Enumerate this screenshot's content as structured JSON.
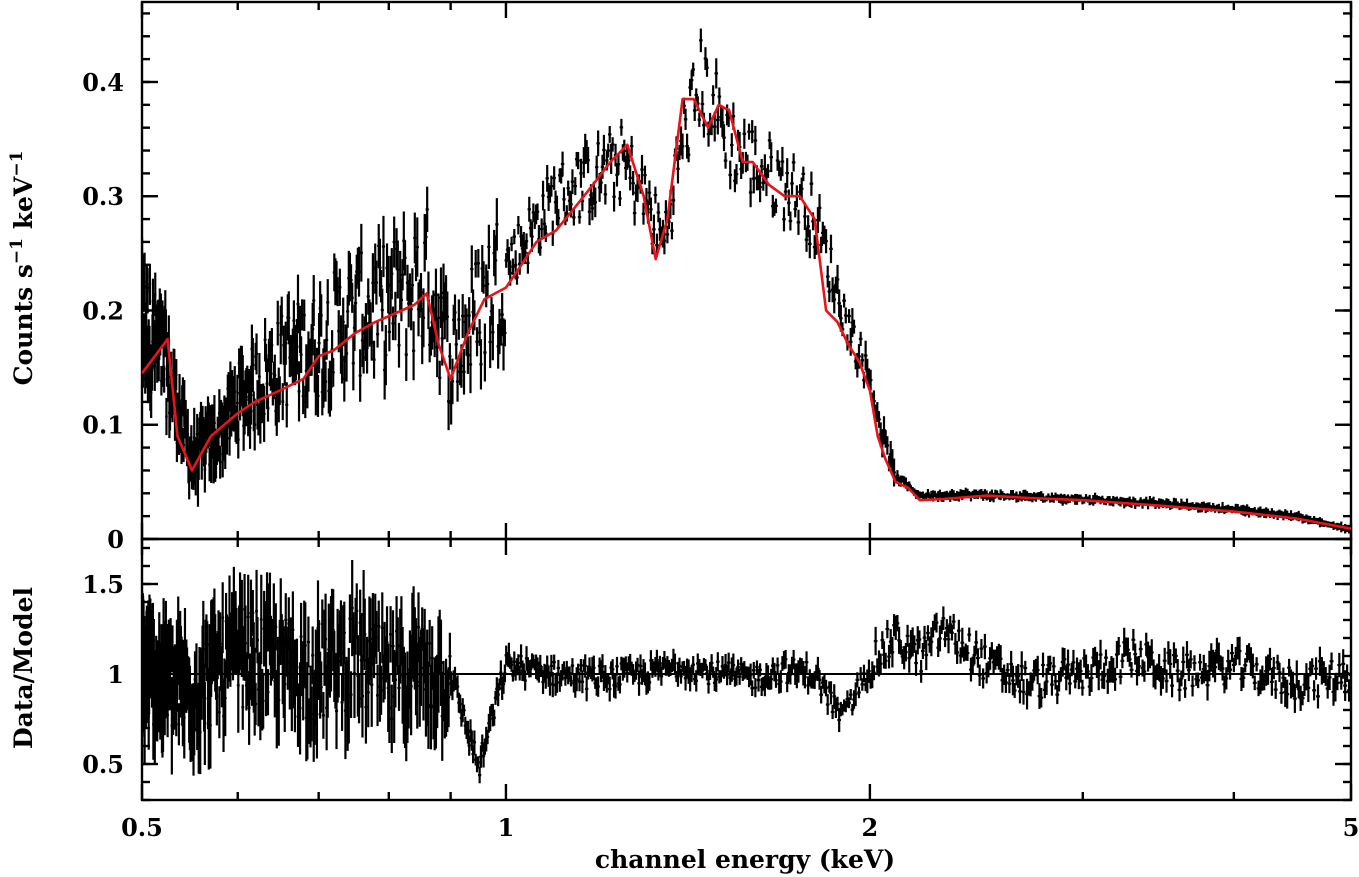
{
  "chart_data": [
    {
      "type": "line",
      "panel": "spectrum",
      "ylabel_parts": [
        "Counts s",
        "−1",
        " keV",
        "−1"
      ],
      "xscale": "log",
      "xlim": [
        0.5,
        5
      ],
      "ylim": [
        0,
        0.47
      ],
      "yticks": [
        0,
        0.1,
        0.2,
        0.3,
        0.4
      ],
      "ytick_labels": [
        "0",
        "0.1",
        "0.2",
        "0.3",
        "0.4"
      ],
      "grid": false,
      "series": [
        {
          "style": "error-bar crosses",
          "color": "#000000",
          "x": [
            0.5,
            0.52,
            0.55,
            0.58,
            0.6,
            0.63,
            0.66,
            0.7,
            0.73,
            0.78,
            0.82,
            0.86,
            0.9,
            0.95,
            1.0,
            1.05,
            1.1,
            1.15,
            1.2,
            1.25,
            1.3,
            1.35,
            1.4,
            1.45,
            1.5,
            1.55,
            1.6,
            1.65,
            1.7,
            1.75,
            1.8,
            1.85,
            1.9,
            1.95,
            2.0,
            2.05,
            2.1,
            2.2,
            2.4,
            2.7,
            3.0,
            3.5,
            4.0,
            4.5,
            5.0
          ],
          "y": [
            0.19,
            0.16,
            0.07,
            0.09,
            0.12,
            0.14,
            0.16,
            0.17,
            0.19,
            0.2,
            0.21,
            0.23,
            0.16,
            0.2,
            0.24,
            0.27,
            0.3,
            0.31,
            0.32,
            0.33,
            0.3,
            0.26,
            0.35,
            0.4,
            0.37,
            0.34,
            0.33,
            0.32,
            0.31,
            0.3,
            0.28,
            0.24,
            0.2,
            0.17,
            0.14,
            0.09,
            0.055,
            0.038,
            0.039,
            0.037,
            0.035,
            0.031,
            0.026,
            0.02,
            0.008
          ]
        },
        {
          "style": "line",
          "color": "#e8141a",
          "x": [
            0.5,
            0.525,
            0.535,
            0.55,
            0.57,
            0.6,
            0.62,
            0.65,
            0.68,
            0.7,
            0.72,
            0.75,
            0.78,
            0.8,
            0.82,
            0.84,
            0.86,
            0.88,
            0.9,
            0.93,
            0.96,
            1.0,
            1.03,
            1.06,
            1.1,
            1.14,
            1.18,
            1.22,
            1.26,
            1.3,
            1.33,
            1.36,
            1.4,
            1.43,
            1.47,
            1.5,
            1.53,
            1.57,
            1.6,
            1.65,
            1.7,
            1.75,
            1.8,
            1.84,
            1.88,
            1.92,
            1.96,
            2.0,
            2.03,
            2.06,
            2.1,
            2.15,
            2.2,
            2.3,
            2.5,
            2.7,
            3.0,
            3.5,
            4.0,
            4.5,
            5.0
          ],
          "y": [
            0.145,
            0.175,
            0.09,
            0.06,
            0.09,
            0.11,
            0.12,
            0.13,
            0.14,
            0.16,
            0.165,
            0.18,
            0.19,
            0.195,
            0.2,
            0.205,
            0.215,
            0.17,
            0.14,
            0.18,
            0.21,
            0.22,
            0.24,
            0.26,
            0.27,
            0.29,
            0.31,
            0.33,
            0.345,
            0.3,
            0.245,
            0.28,
            0.385,
            0.385,
            0.36,
            0.38,
            0.375,
            0.33,
            0.33,
            0.31,
            0.3,
            0.3,
            0.28,
            0.2,
            0.19,
            0.17,
            0.155,
            0.13,
            0.09,
            0.07,
            0.05,
            0.045,
            0.034,
            0.035,
            0.038,
            0.036,
            0.034,
            0.029,
            0.024,
            0.018,
            0.009
          ]
        }
      ]
    },
    {
      "type": "scatter",
      "panel": "ratio",
      "ylabel": "Data/Model",
      "xlabel": "channel energy (keV)",
      "xscale": "log",
      "xlim": [
        0.5,
        5
      ],
      "ylim": [
        0.3,
        1.75
      ],
      "yticks": [
        0.5,
        1,
        1.5
      ],
      "ytick_labels": [
        "0.5",
        "1",
        "1.5"
      ],
      "xticks": [
        0.5,
        1,
        2,
        5
      ],
      "xtick_labels": [
        "0.5",
        "1",
        "2",
        "5"
      ],
      "reference_line": 1,
      "grid": false,
      "series": [
        {
          "style": "error-bar crosses",
          "color": "#000000",
          "x": [
            0.5,
            0.55,
            0.6,
            0.65,
            0.7,
            0.75,
            0.8,
            0.85,
            0.9,
            0.95,
            1.0,
            1.1,
            1.2,
            1.3,
            1.4,
            1.5,
            1.6,
            1.7,
            1.8,
            1.9,
            2.0,
            2.1,
            2.2,
            2.3,
            2.5,
            2.7,
            3.0,
            3.3,
            3.6,
            4.0,
            4.5,
            5.0
          ],
          "y": [
            1.0,
            0.9,
            1.1,
            1.05,
            1.0,
            1.1,
            0.95,
            1.05,
            1.0,
            0.48,
            1.05,
            1.0,
            0.98,
            1.0,
            1.05,
            1.0,
            0.98,
            1.02,
            1.0,
            0.75,
            1.05,
            1.2,
            1.1,
            1.25,
            1.05,
            0.95,
            1.0,
            1.1,
            1.0,
            1.05,
            0.95,
            1.0
          ]
        }
      ]
    }
  ]
}
